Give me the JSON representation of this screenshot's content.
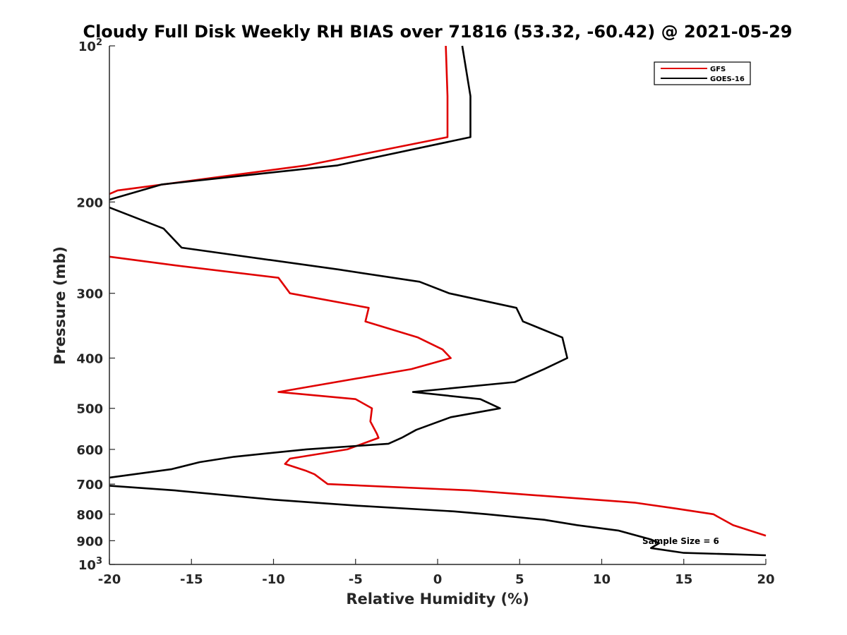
{
  "chart_data": {
    "type": "line",
    "title": "Cloudy Full Disk Weekly RH BIAS over 71816 (53.32, -60.42) @ 2021-05-29",
    "xlabel": "Relative Humidity (%)",
    "ylabel": "Pressure (mb)",
    "xlim": [
      -20,
      20
    ],
    "ylim": [
      100,
      1000
    ],
    "y_scale": "log",
    "y_reversed": true,
    "x_ticks": [
      "-20",
      "-15",
      "-10",
      "-5",
      "0",
      "5",
      "10",
      "15",
      "20"
    ],
    "y_ticks": [
      {
        "value": 100,
        "label": "10",
        "sup": "2"
      },
      {
        "value": 200,
        "label": "200",
        "sup": ""
      },
      {
        "value": 300,
        "label": "300",
        "sup": ""
      },
      {
        "value": 400,
        "label": "400",
        "sup": ""
      },
      {
        "value": 500,
        "label": "500",
        "sup": ""
      },
      {
        "value": 600,
        "label": "600",
        "sup": ""
      },
      {
        "value": 700,
        "label": "700",
        "sup": ""
      },
      {
        "value": 800,
        "label": "800",
        "sup": ""
      },
      {
        "value": 900,
        "label": "900",
        "sup": ""
      },
      {
        "value": 1000,
        "label": "10",
        "sup": "3"
      }
    ],
    "grid": false,
    "legend_position": "top-right",
    "annotation": "Sample Size = 6",
    "series": [
      {
        "name": "GFS",
        "color": "#e00000",
        "points": [
          [
            0.5,
            100
          ],
          [
            0.6,
            125
          ],
          [
            0.6,
            150
          ],
          [
            -8,
            170
          ],
          [
            -19.5,
            190
          ],
          [
            -20,
            193
          ],
          [
            null,
            null
          ],
          [
            -20,
            255
          ],
          [
            -16,
            265
          ],
          [
            -9.7,
            280
          ],
          [
            -9,
            300
          ],
          [
            -4.2,
            320
          ],
          [
            -4.4,
            340
          ],
          [
            -1.2,
            365
          ],
          [
            0.3,
            385
          ],
          [
            0.8,
            400
          ],
          [
            -1.6,
            420
          ],
          [
            -9.7,
            465
          ],
          [
            -5,
            480
          ],
          [
            -4,
            500
          ],
          [
            -4.1,
            530
          ],
          [
            -3.7,
            560
          ],
          [
            -3.6,
            570
          ],
          [
            -5.5,
            600
          ],
          [
            -9,
            625
          ],
          [
            -9.3,
            640
          ],
          [
            -8,
            660
          ],
          [
            -7.5,
            670
          ],
          [
            -6.7,
            700
          ],
          [
            2,
            720
          ],
          [
            12,
            760
          ],
          [
            14.5,
            780
          ],
          [
            16.8,
            800
          ],
          [
            18,
            840
          ],
          [
            19.5,
            870
          ],
          [
            20,
            880
          ]
        ]
      },
      {
        "name": "GOES-16",
        "color": "#000000",
        "points": [
          [
            1.5,
            100
          ],
          [
            2,
            125
          ],
          [
            2,
            150
          ],
          [
            -6.1,
            170
          ],
          [
            -16.8,
            185
          ],
          [
            -20,
            198
          ],
          [
            null,
            null
          ],
          [
            -20,
            205
          ],
          [
            -16.7,
            225
          ],
          [
            -15.6,
            245
          ],
          [
            -6,
            270
          ],
          [
            -1.1,
            285
          ],
          [
            0.7,
            300
          ],
          [
            4.8,
            320
          ],
          [
            5.2,
            340
          ],
          [
            7.6,
            365
          ],
          [
            7.9,
            400
          ],
          [
            6.5,
            420
          ],
          [
            4.7,
            445
          ],
          [
            -1.5,
            465
          ],
          [
            2.6,
            480
          ],
          [
            3.8,
            500
          ],
          [
            0.8,
            520
          ],
          [
            -1.3,
            550
          ],
          [
            -2.2,
            570
          ],
          [
            -3,
            585
          ],
          [
            -8,
            600
          ],
          [
            -12.4,
            620
          ],
          [
            -14.5,
            635
          ],
          [
            -16.2,
            655
          ],
          [
            -20,
            680
          ],
          [
            null,
            null
          ],
          [
            -20,
            705
          ],
          [
            -16,
            720
          ],
          [
            -10,
            750
          ],
          [
            -5,
            770
          ],
          [
            1,
            790
          ],
          [
            3,
            800
          ],
          [
            6.5,
            820
          ],
          [
            8.5,
            840
          ],
          [
            11,
            860
          ],
          [
            13,
            895
          ],
          [
            13.5,
            910
          ],
          [
            13,
            930
          ],
          [
            15,
            950
          ],
          [
            20,
            960
          ]
        ]
      }
    ]
  }
}
